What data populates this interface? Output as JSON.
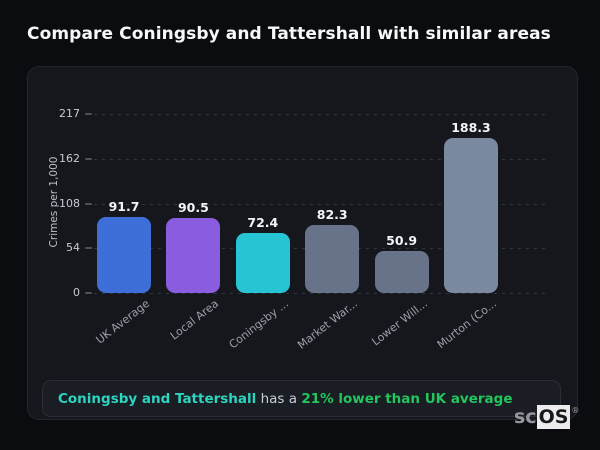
{
  "page": {
    "title": "Compare Coningsby and Tattershall with similar areas"
  },
  "chart_data": {
    "type": "bar",
    "title": "",
    "xlabel": "",
    "ylabel": "Crimes per 1,000",
    "categories": [
      "UK Average",
      "Local Area",
      "Coningsby ...",
      "Market War...",
      "Lower Will...",
      "Murton (Co..."
    ],
    "values": [
      91.7,
      90.5,
      72.4,
      82.3,
      50.9,
      188.3
    ],
    "value_labels": [
      "91.7",
      "90.5",
      "72.4",
      "82.3",
      "50.9",
      "188.3"
    ],
    "bar_colors": [
      "#3e6fd9",
      "#8a5ce0",
      "#27c4d4",
      "#68738a",
      "#68738a",
      "#7b89a0"
    ],
    "yticks": [
      0,
      54,
      108,
      162,
      217
    ],
    "ylim": [
      0,
      217
    ],
    "grid": "dotted-horizontal",
    "legend": "none"
  },
  "annotation": {
    "area": "Coningsby and Tattershall",
    "connector": " has a ",
    "stat": "21% lower than UK average",
    "area_color": "#2dd4bf",
    "stat_color": "#22c55e"
  },
  "logo": {
    "prefix": "sc",
    "suffix": "OS",
    "registered": "®"
  }
}
